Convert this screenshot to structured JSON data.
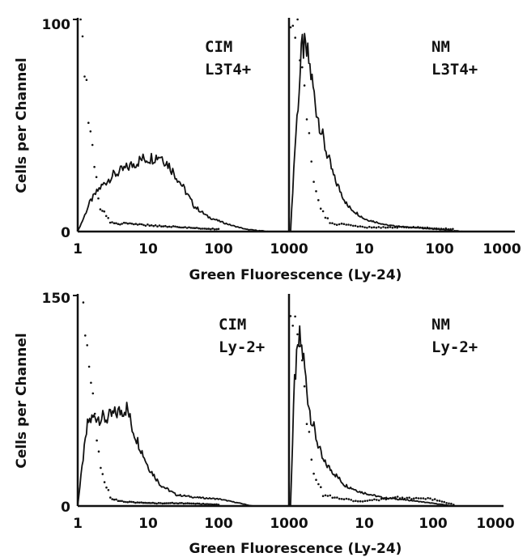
{
  "chart_data": [
    {
      "type": "line",
      "ylabel": "Cells per Channel",
      "xlabel": "Green Fluorescence (Ly-24)",
      "ylim": [
        0,
        100
      ],
      "y_ticks": [
        "100",
        "0"
      ],
      "x_scale": "log",
      "x_ticks_left": [
        "1",
        "10",
        "100",
        "1000"
      ],
      "x_ticks_right": [
        "10",
        "100",
        "1000"
      ],
      "left": {
        "annotation": [
          "CIM",
          "L3T4+"
        ],
        "series": [
          {
            "style": "solid",
            "x": [
              1.0,
              1.2,
              1.5,
              2.0,
              3.0,
              5.0,
              8.0,
              12.0,
              15.0,
              20.0,
              30.0,
              45.0,
              70.0,
              100.0,
              150.0,
              250.0,
              500.0
            ],
            "y": [
              0,
              6,
              14,
              20,
              26,
              30,
              34,
              35,
              36,
              31,
              22,
              12,
              7,
              5,
              3,
              1,
              0
            ]
          },
          {
            "style": "dotted",
            "x": [
              1.1,
              1.2,
              1.3,
              1.5,
              1.8,
              2.0,
              3.0,
              10.0,
              30.0,
              100.0
            ],
            "y": [
              100,
              90,
              70,
              50,
              28,
              12,
              4,
              3,
              2,
              1
            ]
          }
        ]
      },
      "right": {
        "annotation": [
          "NM",
          "L3T4+"
        ],
        "series": [
          {
            "style": "solid",
            "x": [
              1.05,
              1.2,
              1.5,
              1.8,
              2.0,
              2.3,
              3.0,
              4.0,
              6.0,
              10.0,
              20.0,
              40.0,
              100.0,
              200.0
            ],
            "y": [
              0,
              40,
              88,
              82,
              72,
              58,
              40,
              25,
              12,
              6,
              3,
              2,
              1,
              0
            ]
          },
          {
            "style": "dotted",
            "x": [
              1.05,
              1.2,
              1.4,
              1.7,
              2.0,
              2.5,
              3.5,
              10.0,
              50.0,
              150.0
            ],
            "y": [
              95,
              100,
              90,
              60,
              30,
              12,
              4,
              2,
              2,
              1
            ]
          }
        ]
      }
    },
    {
      "type": "line",
      "ylabel": "Cells per Channel",
      "xlabel": "Green Fluorescence (Ly-24)",
      "ylim": [
        0,
        150
      ],
      "y_ticks": [
        "150",
        "0"
      ],
      "x_scale": "log",
      "x_ticks_left": [
        "1",
        "10",
        "100",
        "1000"
      ],
      "x_ticks_right": [
        "10",
        "100",
        "1000"
      ],
      "left": {
        "annotation": [
          "CIM",
          "Ly-2+"
        ],
        "series": [
          {
            "style": "solid",
            "x": [
              1.0,
              1.2,
              1.4,
              1.8,
              2.5,
              3.5,
              5.0,
              6.0,
              8.0,
              10.0,
              15.0,
              25.0,
              50.0,
              100.0,
              200.0,
              300.0
            ],
            "y": [
              0,
              35,
              60,
              64,
              62,
              66,
              70,
              55,
              40,
              28,
              15,
              8,
              6,
              5,
              2,
              0
            ]
          },
          {
            "style": "dotted",
            "x": [
              1.2,
              1.4,
              1.6,
              1.8,
              2.0,
              2.5,
              3.0,
              5.0,
              10.0,
              30.0,
              100.0
            ],
            "y": [
              150,
              120,
              90,
              60,
              35,
              15,
              5,
              3,
              2,
              2,
              1
            ]
          }
        ]
      },
      "right": {
        "annotation": [
          "NM",
          "Ly-2+"
        ],
        "series": [
          {
            "style": "solid",
            "x": [
              1.05,
              1.2,
              1.4,
              1.6,
              1.8,
              2.0,
              2.5,
              3.0,
              4.0,
              6.0,
              10.0,
              20.0,
              50.0,
              100.0,
              200.0
            ],
            "y": [
              0,
              90,
              120,
              105,
              80,
              65,
              45,
              32,
              25,
              15,
              10,
              6,
              4,
              2,
              0
            ]
          },
          {
            "style": "dotted",
            "x": [
              1.05,
              1.2,
              1.4,
              1.6,
              1.8,
              2.2,
              3.0,
              10.0,
              30.0,
              100.0,
              200.0
            ],
            "y": [
              140,
              150,
              130,
              95,
              60,
              25,
              8,
              3,
              6,
              5,
              1
            ]
          }
        ]
      }
    }
  ]
}
